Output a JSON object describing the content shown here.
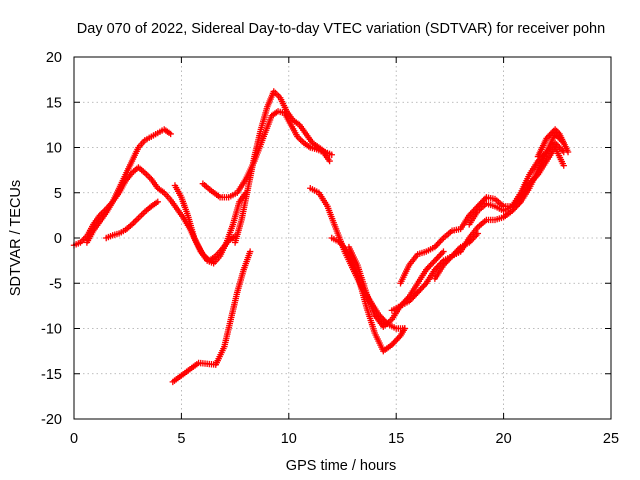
{
  "chart_data": {
    "type": "scatter",
    "title": "Day 070 of 2022, Sidereal Day-to-day VTEC variation (SDTVAR) for receiver pohn",
    "xlabel": "GPS time / hours",
    "ylabel": "SDTVAR / TECUs",
    "xlim": [
      0,
      25
    ],
    "ylim": [
      -20,
      20
    ],
    "xticks": [
      0,
      5,
      10,
      15,
      20,
      25
    ],
    "yticks": [
      -20,
      -15,
      -10,
      -5,
      0,
      5,
      10,
      15,
      20
    ],
    "x_tick_labels": [
      "0",
      "5",
      "10",
      "15",
      "20",
      "25"
    ],
    "y_tick_labels": [
      "-20",
      "-15",
      "-10",
      "-5",
      "0",
      "5",
      "10",
      "15",
      "20"
    ],
    "grid": true,
    "marker": "+",
    "series_color": "#ff0000",
    "series": [
      {
        "x": [
          0.0,
          0.3,
          0.6,
          0.9,
          1.2,
          1.5,
          1.8,
          2.1,
          2.4,
          2.7,
          3.0,
          3.3,
          3.6,
          3.9,
          4.2,
          4.5,
          4.8,
          5.1,
          5.4,
          5.7,
          6.0,
          6.3,
          6.6,
          6.9,
          7.2,
          7.5
        ],
        "y": [
          -0.8,
          -0.5,
          0.2,
          1.5,
          2.5,
          3.2,
          4.0,
          5.0,
          6.3,
          7.2,
          7.8,
          7.2,
          6.5,
          5.5,
          5.0,
          4.2,
          3.2,
          2.2,
          1.0,
          -0.5,
          -1.8,
          -2.5,
          -2.0,
          -1.2,
          -0.3,
          0.2
        ]
      },
      {
        "x": [
          0.6,
          0.9,
          1.2,
          1.5,
          1.8,
          2.1,
          2.4,
          2.7,
          3.0,
          3.3,
          3.6,
          3.9,
          4.2,
          4.5
        ],
        "y": [
          -0.5,
          0.8,
          1.8,
          2.8,
          4.0,
          5.5,
          7.0,
          8.5,
          10.0,
          10.8,
          11.2,
          11.6,
          12.0,
          11.5
        ]
      },
      {
        "x": [
          1.5,
          1.8,
          2.1,
          2.4,
          2.7,
          3.0,
          3.3,
          3.6,
          3.9
        ],
        "y": [
          0.0,
          0.3,
          0.5,
          0.9,
          1.5,
          2.2,
          2.9,
          3.5,
          4.0
        ]
      },
      {
        "x": [
          4.7,
          5.0,
          5.3,
          5.6,
          5.9,
          6.2,
          6.5,
          6.8,
          7.1,
          7.4,
          7.7,
          8.0
        ],
        "y": [
          5.8,
          4.5,
          2.5,
          0.0,
          -1.5,
          -2.5,
          -2.8,
          -2.0,
          -0.5,
          1.5,
          4.0,
          5.0
        ]
      },
      {
        "x": [
          4.6,
          5.0,
          5.4,
          5.8,
          6.2,
          6.6,
          7.0,
          7.3,
          7.6,
          7.9,
          8.2
        ],
        "y": [
          -15.9,
          -15.2,
          -14.5,
          -13.8,
          -13.9,
          -14.0,
          -12.0,
          -9.0,
          -6.0,
          -3.5,
          -1.5
        ]
      },
      {
        "x": [
          6.0,
          6.4,
          6.8,
          7.2,
          7.6,
          8.0,
          8.4,
          8.8,
          9.2,
          9.5,
          9.8,
          10.1,
          10.4,
          10.7,
          11.0,
          11.3,
          11.6,
          11.9
        ],
        "y": [
          6.0,
          5.2,
          4.5,
          4.5,
          5.0,
          6.5,
          8.5,
          11.0,
          13.5,
          14.0,
          13.8,
          12.5,
          11.2,
          10.5,
          10.0,
          9.8,
          9.5,
          8.5
        ]
      },
      {
        "x": [
          7.5,
          7.8,
          8.1,
          8.4,
          8.7,
          9.0,
          9.3,
          9.6,
          9.9,
          10.2,
          10.5,
          10.8,
          11.1,
          11.4,
          11.7,
          12.0
        ],
        "y": [
          -0.5,
          2.0,
          5.5,
          9.0,
          12.0,
          14.5,
          16.2,
          15.5,
          14.0,
          13.0,
          12.5,
          11.5,
          10.5,
          10.0,
          9.5,
          9.2
        ]
      },
      {
        "x": [
          11.0,
          11.4,
          11.8,
          12.2,
          12.6,
          13.0,
          13.4,
          13.8,
          14.2,
          14.6,
          15.0,
          15.4
        ],
        "y": [
          5.5,
          5.0,
          3.5,
          1.0,
          -1.5,
          -3.5,
          -5.5,
          -7.0,
          -8.5,
          -9.5,
          -10.0,
          -10.0
        ]
      },
      {
        "x": [
          12.0,
          12.4,
          12.8,
          13.2,
          13.6,
          14.0,
          14.4,
          14.8,
          15.2,
          15.4
        ],
        "y": [
          0.0,
          -0.5,
          -1.8,
          -4.0,
          -7.5,
          -10.5,
          -12.5,
          -11.8,
          -10.8,
          -10.0
        ]
      },
      {
        "x": [
          12.8,
          13.2,
          13.6,
          14.0,
          14.4,
          14.8,
          15.2,
          15.6,
          16.0,
          16.4,
          16.8,
          17.2
        ],
        "y": [
          -1.0,
          -3.0,
          -6.0,
          -8.5,
          -9.8,
          -9.0,
          -7.5,
          -6.5,
          -5.0,
          -3.5,
          -2.5,
          -1.5
        ]
      },
      {
        "x": [
          14.8,
          15.2,
          15.6,
          16.0,
          16.4,
          16.8,
          17.2,
          17.6,
          18.0,
          18.4,
          18.8
        ],
        "y": [
          -8.0,
          -7.5,
          -7.0,
          -6.0,
          -5.0,
          -3.5,
          -2.5,
          -2.0,
          -1.0,
          -0.5,
          0.5
        ]
      },
      {
        "x": [
          15.2,
          15.6,
          16.0,
          16.4,
          16.8,
          17.2,
          17.6,
          18.0,
          18.4,
          18.8,
          19.2,
          19.6,
          20.0,
          20.4,
          20.8,
          21.2,
          21.6,
          22.0,
          22.4,
          22.8
        ],
        "y": [
          -5.0,
          -3.0,
          -1.8,
          -1.5,
          -1.0,
          0.0,
          0.8,
          1.0,
          2.5,
          3.5,
          4.5,
          4.3,
          3.5,
          3.5,
          5.0,
          7.0,
          8.5,
          9.5,
          10.5,
          9.5
        ]
      },
      {
        "x": [
          16.8,
          17.2,
          17.6,
          18.0,
          18.4,
          18.8,
          19.2,
          19.6,
          20.0,
          20.4,
          20.8,
          21.2,
          21.6,
          22.0,
          22.4,
          22.8
        ],
        "y": [
          -4.5,
          -3.0,
          -2.0,
          -1.5,
          0.0,
          1.2,
          2.0,
          2.0,
          2.3,
          3.0,
          4.0,
          5.5,
          7.5,
          9.5,
          11.5,
          10.5
        ]
      },
      {
        "x": [
          18.4,
          18.8,
          19.2,
          19.6,
          20.0,
          20.4,
          20.8,
          21.2,
          21.6,
          22.0,
          22.4,
          22.8
        ],
        "y": [
          1.5,
          3.0,
          3.8,
          3.5,
          3.0,
          3.5,
          4.5,
          6.0,
          7.0,
          8.5,
          10.0,
          8.0
        ]
      },
      {
        "x": [
          21.6,
          21.8,
          22.0,
          22.2,
          22.4,
          22.6,
          22.8,
          23.0
        ],
        "y": [
          9.0,
          10.0,
          11.0,
          11.5,
          12.0,
          11.5,
          10.5,
          9.5
        ]
      }
    ]
  }
}
